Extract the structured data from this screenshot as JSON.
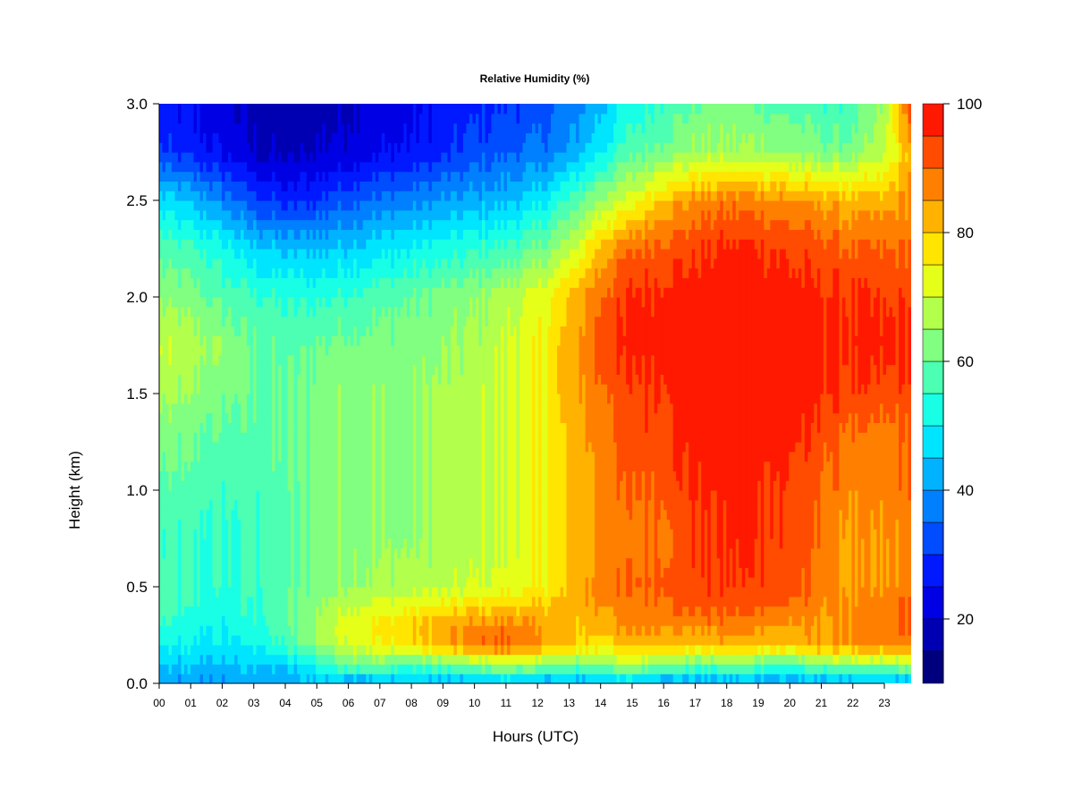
{
  "chart_data": {
    "type": "heatmap",
    "title": "Relative Humidity (%)",
    "xlabel": "Hours (UTC)",
    "ylabel": "Height (km)",
    "xlim": [
      0,
      23.85
    ],
    "ylim": [
      0.0,
      3.0
    ],
    "x_ticks": [
      0,
      1,
      2,
      3,
      4,
      5,
      6,
      7,
      8,
      9,
      10,
      11,
      12,
      13,
      14,
      15,
      16,
      17,
      18,
      19,
      20,
      21,
      22,
      23
    ],
    "x_tick_labels": [
      "00",
      "01",
      "02",
      "03",
      "04",
      "05",
      "06",
      "07",
      "08",
      "09",
      "10",
      "11",
      "12",
      "13",
      "14",
      "15",
      "16",
      "17",
      "18",
      "19",
      "20",
      "21",
      "22",
      "23"
    ],
    "y_ticks": [
      0.0,
      0.5,
      1.0,
      1.5,
      2.0,
      2.5,
      3.0
    ],
    "y_tick_labels": [
      "0.0",
      "0.5",
      "1.0",
      "1.5",
      "2.0",
      "2.5",
      "3.0"
    ],
    "colorbar": {
      "range": [
        10,
        100
      ],
      "levels": [
        10,
        15,
        20,
        25,
        30,
        35,
        40,
        45,
        50,
        55,
        60,
        65,
        70,
        75,
        80,
        85,
        90,
        95,
        100
      ],
      "colors": [
        "#00007F",
        "#0000B2",
        "#0000E5",
        "#0019FF",
        "#004CFF",
        "#0080FF",
        "#00B2FF",
        "#00E5FF",
        "#19FFE5",
        "#4CFFB2",
        "#80FF80",
        "#B2FF4C",
        "#E5FF19",
        "#FFE500",
        "#FFB200",
        "#FF8000",
        "#FF4C00",
        "#FF1900",
        "#E50000",
        "#B20000",
        "#7F0000"
      ],
      "tick_values": [
        20,
        40,
        60,
        80,
        100
      ],
      "tick_labels": [
        "20",
        "40",
        "60",
        "80",
        "100"
      ]
    },
    "grid": false,
    "heights_km": [
      0.0,
      0.1,
      0.2,
      0.3,
      0.4,
      0.5,
      0.75,
      1.0,
      1.25,
      1.5,
      1.75,
      2.0,
      2.25,
      2.5,
      2.75,
      3.0
    ],
    "hours": [
      0,
      1,
      2,
      3,
      4,
      5,
      6,
      7,
      8,
      9,
      10,
      11,
      12,
      13,
      14,
      15,
      16,
      17,
      18,
      19,
      20,
      21,
      22,
      23,
      23.85
    ],
    "values": [
      [
        40,
        40,
        40,
        40,
        40,
        44,
        40,
        40,
        44,
        40,
        40,
        44,
        40,
        40,
        40,
        44,
        40,
        40,
        40,
        40,
        40,
        40,
        40,
        40,
        40
      ],
      [
        45,
        45,
        44,
        46,
        45,
        52,
        62,
        62,
        57,
        60,
        64,
        68,
        64,
        60,
        64,
        68,
        64,
        60,
        62,
        60,
        58,
        62,
        64,
        64,
        68
      ],
      [
        50,
        50,
        48,
        50,
        56,
        64,
        72,
        74,
        78,
        82,
        88,
        92,
        86,
        80,
        78,
        82,
        82,
        80,
        82,
        82,
        80,
        85,
        86,
        86,
        88
      ],
      [
        55,
        52,
        50,
        54,
        58,
        66,
        74,
        76,
        80,
        84,
        86,
        88,
        84,
        80,
        82,
        86,
        88,
        86,
        88,
        86,
        84,
        84,
        86,
        88,
        92
      ],
      [
        57,
        54,
        52,
        55,
        58,
        64,
        70,
        72,
        74,
        76,
        78,
        80,
        80,
        82,
        86,
        88,
        90,
        92,
        92,
        92,
        90,
        86,
        86,
        88,
        92
      ],
      [
        57,
        55,
        54,
        56,
        58,
        62,
        66,
        66,
        68,
        68,
        70,
        72,
        74,
        80,
        88,
        90,
        92,
        93,
        94,
        94,
        92,
        88,
        84,
        84,
        88
      ],
      [
        55,
        55,
        54,
        56,
        58,
        62,
        64,
        64,
        64,
        66,
        68,
        70,
        74,
        80,
        86,
        88,
        90,
        94,
        96,
        96,
        94,
        88,
        84,
        84,
        88
      ],
      [
        58,
        58,
        56,
        56,
        58,
        62,
        64,
        64,
        64,
        66,
        68,
        70,
        74,
        80,
        86,
        90,
        92,
        96,
        96,
        96,
        94,
        90,
        86,
        86,
        90
      ],
      [
        62,
        60,
        58,
        58,
        60,
        62,
        64,
        64,
        64,
        66,
        68,
        70,
        74,
        80,
        88,
        92,
        94,
        97,
        98,
        98,
        96,
        92,
        88,
        86,
        90
      ],
      [
        66,
        64,
        62,
        60,
        60,
        62,
        64,
        64,
        64,
        66,
        68,
        70,
        74,
        82,
        90,
        94,
        96,
        99,
        99,
        99,
        98,
        96,
        94,
        92,
        94
      ],
      [
        70,
        68,
        64,
        60,
        58,
        60,
        62,
        62,
        62,
        64,
        66,
        70,
        74,
        82,
        92,
        96,
        98,
        99,
        99,
        99,
        98,
        96,
        96,
        96,
        96
      ],
      [
        64,
        62,
        58,
        56,
        54,
        54,
        56,
        58,
        60,
        62,
        64,
        68,
        72,
        80,
        90,
        96,
        97,
        98,
        98,
        98,
        97,
        96,
        95,
        94,
        94
      ],
      [
        58,
        56,
        52,
        46,
        44,
        44,
        46,
        48,
        50,
        52,
        54,
        56,
        60,
        68,
        82,
        90,
        92,
        94,
        96,
        96,
        94,
        92,
        90,
        90,
        90
      ],
      [
        48,
        44,
        38,
        32,
        28,
        30,
        34,
        36,
        38,
        40,
        42,
        44,
        48,
        56,
        66,
        72,
        82,
        86,
        88,
        88,
        86,
        84,
        82,
        82,
        86
      ],
      [
        30,
        28,
        24,
        20,
        18,
        20,
        22,
        24,
        26,
        28,
        32,
        34,
        36,
        40,
        50,
        58,
        62,
        66,
        66,
        66,
        64,
        62,
        62,
        68,
        84
      ],
      [
        26,
        24,
        22,
        18,
        16,
        18,
        20,
        22,
        24,
        26,
        28,
        30,
        32,
        36,
        44,
        52,
        56,
        60,
        62,
        60,
        58,
        56,
        56,
        66,
        94
      ]
    ]
  }
}
